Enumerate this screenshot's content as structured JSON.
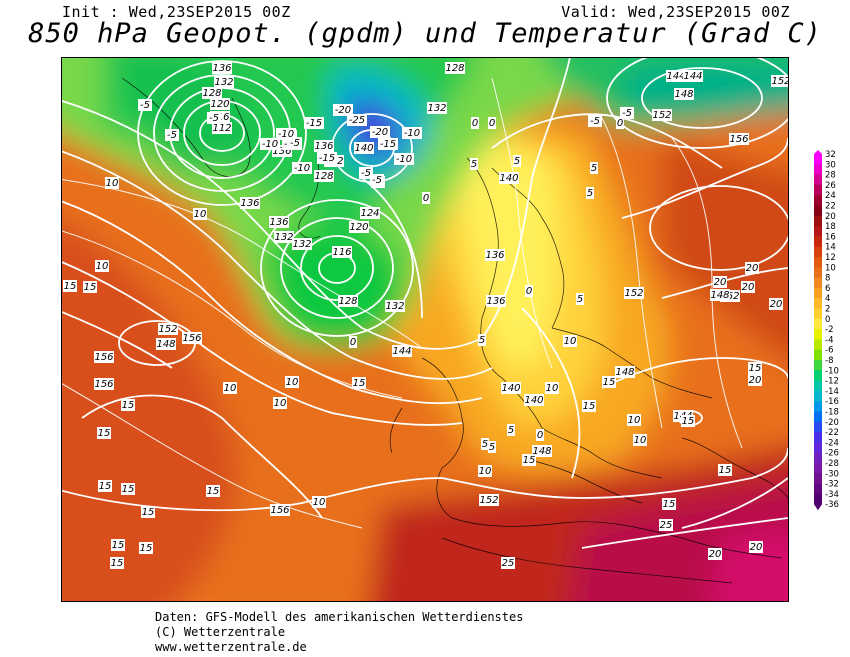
{
  "header": {
    "init": "Init : Wed,23SEP2015 00Z",
    "valid": "Valid: Wed,23SEP2015 00Z",
    "title": "850 hPa Geopot. (gpdm) und Temperatur (Grad C)"
  },
  "map": {
    "geopotential_labels": [
      {
        "text": "136"
      },
      {
        "text": "132"
      },
      {
        "text": "128"
      },
      {
        "text": "120"
      },
      {
        "text": "116"
      },
      {
        "text": "112"
      },
      {
        "text": "136"
      },
      {
        "text": "140"
      },
      {
        "text": "132"
      },
      {
        "text": "128"
      },
      {
        "text": "124"
      },
      {
        "text": "120"
      },
      {
        "text": "136"
      },
      {
        "text": "132"
      },
      {
        "text": "116"
      },
      {
        "text": "128"
      },
      {
        "text": "132"
      },
      {
        "text": "128"
      },
      {
        "text": "132"
      },
      {
        "text": "140"
      },
      {
        "text": "144"
      },
      {
        "text": "148"
      },
      {
        "text": "152"
      },
      {
        "text": "156"
      },
      {
        "text": "136"
      },
      {
        "text": "136"
      },
      {
        "text": "140"
      },
      {
        "text": "140"
      },
      {
        "text": "144"
      },
      {
        "text": "148"
      },
      {
        "text": "152"
      },
      {
        "text": "156"
      },
      {
        "text": "156"
      },
      {
        "text": "152"
      },
      {
        "text": "148"
      },
      {
        "text": "156"
      },
      {
        "text": "156"
      },
      {
        "text": "152"
      },
      {
        "text": "148"
      },
      {
        "text": "148"
      },
      {
        "text": "144"
      },
      {
        "text": "152"
      },
      {
        "text": "152"
      },
      {
        "text": "144"
      },
      {
        "text": "136"
      },
      {
        "text": "132"
      },
      {
        "text": "136"
      }
    ],
    "temperature_labels": [
      {
        "text": "-5"
      },
      {
        "text": "-5"
      },
      {
        "text": "-5"
      },
      {
        "text": "-10"
      },
      {
        "text": "-5"
      },
      {
        "text": "-15"
      },
      {
        "text": "-10"
      },
      {
        "text": "-15"
      },
      {
        "text": "-20"
      },
      {
        "text": "-25"
      },
      {
        "text": "-10"
      },
      {
        "text": "-5"
      },
      {
        "text": "-15"
      },
      {
        "text": "-20"
      },
      {
        "text": "-15"
      },
      {
        "text": "-10"
      },
      {
        "text": "-5"
      },
      {
        "text": "-5"
      },
      {
        "text": "-10"
      },
      {
        "text": "-5"
      },
      {
        "text": "0"
      },
      {
        "text": "0"
      },
      {
        "text": "0"
      },
      {
        "text": "5"
      },
      {
        "text": "-5"
      },
      {
        "text": "-5"
      },
      {
        "text": "0"
      },
      {
        "text": "5"
      },
      {
        "text": "10"
      },
      {
        "text": "10"
      },
      {
        "text": "10"
      },
      {
        "text": "15"
      },
      {
        "text": "15"
      },
      {
        "text": "15"
      },
      {
        "text": "15"
      },
      {
        "text": "10"
      },
      {
        "text": "10"
      },
      {
        "text": "15"
      },
      {
        "text": "10"
      },
      {
        "text": "10"
      },
      {
        "text": "15"
      },
      {
        "text": "15"
      },
      {
        "text": "15"
      },
      {
        "text": "15"
      },
      {
        "text": "5"
      },
      {
        "text": "5"
      },
      {
        "text": "0"
      },
      {
        "text": "5"
      },
      {
        "text": "5"
      },
      {
        "text": "5"
      },
      {
        "text": "10"
      },
      {
        "text": "10"
      },
      {
        "text": "15"
      },
      {
        "text": "15"
      },
      {
        "text": "15"
      },
      {
        "text": "10"
      },
      {
        "text": "10"
      },
      {
        "text": "15"
      },
      {
        "text": "15"
      },
      {
        "text": "15"
      },
      {
        "text": "20"
      },
      {
        "text": "20"
      },
      {
        "text": "20"
      },
      {
        "text": "20"
      },
      {
        "text": "20"
      },
      {
        "text": "20"
      },
      {
        "text": "25"
      },
      {
        "text": "25"
      },
      {
        "text": "0"
      },
      {
        "text": "10"
      },
      {
        "text": "15"
      },
      {
        "text": "5"
      },
      {
        "text": "5"
      },
      {
        "text": "0"
      },
      {
        "text": "15"
      },
      {
        "text": "15"
      },
      {
        "text": "15"
      },
      {
        "text": "20"
      }
    ]
  },
  "legend": {
    "values": [
      "32",
      "30",
      "28",
      "26",
      "24",
      "22",
      "20",
      "18",
      "16",
      "14",
      "12",
      "10",
      "8",
      "6",
      "4",
      "2",
      "0",
      "-2",
      "-4",
      "-6",
      "-8",
      "-10",
      "-12",
      "-14",
      "-16",
      "-18",
      "-20",
      "-22",
      "-24",
      "-26",
      "-28",
      "-30",
      "-32",
      "-34",
      "-36"
    ],
    "colors": [
      "#ff00ff",
      "#ee00cc",
      "#d40090",
      "#b8005a",
      "#9e0030",
      "#860018",
      "#9c1010",
      "#b41818",
      "#c82a10",
      "#d84010",
      "#e05a10",
      "#e87018",
      "#f08a20",
      "#f8a020",
      "#ffb828",
      "#ffd030",
      "#ffe840",
      "#e8f000",
      "#b8e800",
      "#80e000",
      "#40d840",
      "#00d070",
      "#00c8a8",
      "#00b8d0",
      "#0098e8",
      "#0070f0",
      "#2848f0",
      "#4830e8",
      "#6028d8",
      "#7020c0",
      "#7818a8",
      "#701090",
      "#600880",
      "#500070"
    ]
  },
  "footer": {
    "line1": "Daten: GFS-Modell des amerikanischen Wetterdienstes",
    "line2": "(C) Wetterzentrale",
    "line3": "www.wetterzentrale.de"
  }
}
